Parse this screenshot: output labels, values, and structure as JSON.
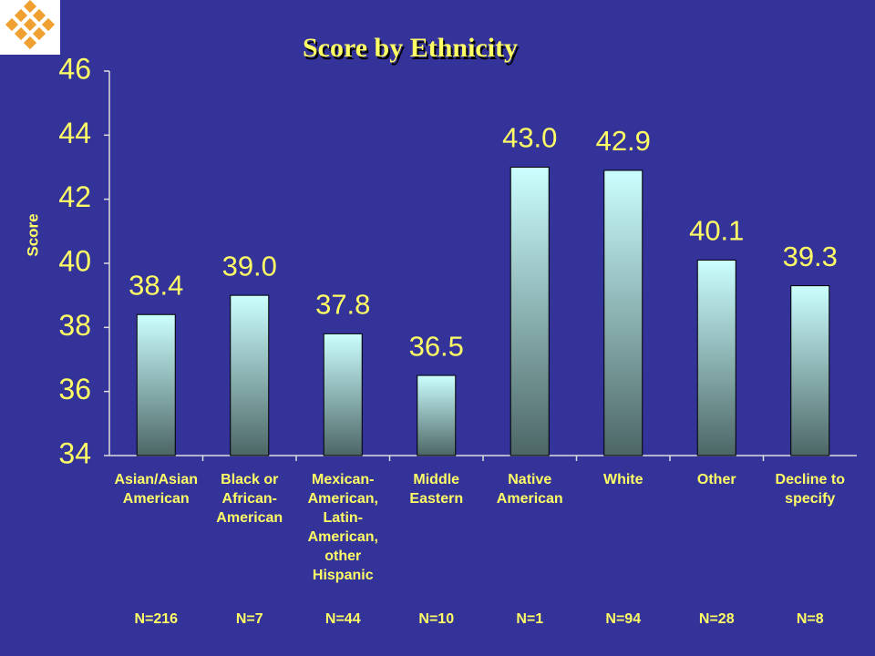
{
  "chart_data": {
    "type": "bar",
    "title": "Score by Ethnicity",
    "y_label": "Score",
    "categories": [
      "Asian/Asian American",
      "Black or African-American",
      "Mexican-American, Latin-American, other Hispanic",
      "Middle Eastern",
      "Native American",
      "White",
      "Other",
      "Decline to specify"
    ],
    "values": [
      38.4,
      39.0,
      37.8,
      36.5,
      43.0,
      42.9,
      40.1,
      39.3
    ],
    "value_labels": [
      "38.4",
      "39.0",
      "37.8",
      "36.5",
      "43.0",
      "42.9",
      "40.1",
      "39.3"
    ],
    "n_labels": [
      "N=216",
      "N=7",
      "N=44",
      "N=10",
      "N=1",
      "N=94",
      "N=28",
      "N=8"
    ],
    "gradient": [
      "#ccffff",
      "#4d6666"
    ],
    "ylim": [
      34,
      46
    ],
    "yticks": [
      34,
      36,
      38,
      40,
      42,
      44,
      46
    ],
    "grid": false
  }
}
